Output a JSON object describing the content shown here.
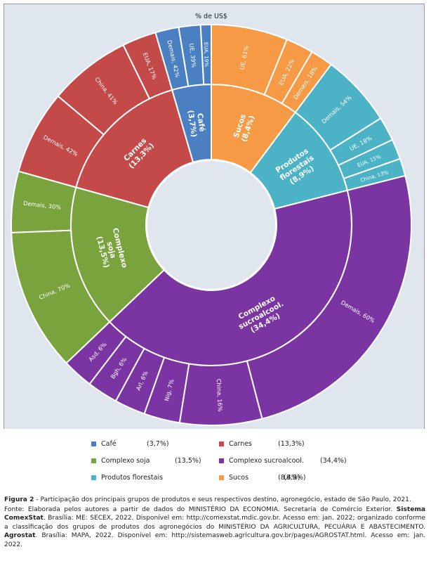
{
  "chart_data": {
    "type": "sunburst",
    "title": "% de US$",
    "legend_position": "bottom",
    "groups": [
      {
        "name": "Sucos",
        "value_label": "(8,4%)",
        "value": 8.4,
        "color": "#f79a45",
        "children": [
          {
            "label": "UE, 61%",
            "share": 61
          },
          {
            "label": "EUA, 22%",
            "share": 22
          },
          {
            "label": "Demais, 18%",
            "share": 18
          }
        ]
      },
      {
        "name": "Produtos florestais",
        "value_label": "(8,9%)",
        "value": 8.9,
        "color": "#4cb3c7",
        "children": [
          {
            "label": "Demais, 54%",
            "share": 54
          },
          {
            "label": "UE, 18%",
            "share": 18
          },
          {
            "label": "EUA, 15%",
            "share": 15
          },
          {
            "label": "China, 13%",
            "share": 13
          }
        ]
      },
      {
        "name": "Complexo sucroalcool.",
        "value_label": "(34,4%)",
        "value": 34.4,
        "color": "#7a35a3",
        "children": [
          {
            "label": "Demais, 60%",
            "share": 60
          },
          {
            "label": "China, 16%",
            "share": 16
          },
          {
            "label": "Nig, 7%",
            "share": 7
          },
          {
            "label": "Arl, 6%",
            "share": 6
          },
          {
            "label": "Bgh, 6%",
            "share": 6
          },
          {
            "label": "Asd, 6%",
            "share": 6
          }
        ]
      },
      {
        "name": "Complexo soja",
        "value_label": "(13,5%)",
        "value": 13.5,
        "color": "#79a33d",
        "children": [
          {
            "label": "China, 70%",
            "share": 70
          },
          {
            "label": "Demais, 30%",
            "share": 30
          }
        ]
      },
      {
        "name": "Carnes",
        "value_label": "(13,3%)",
        "value": 13.3,
        "color": "#c44a4a",
        "children": [
          {
            "label": "Demais, 42%",
            "share": 42
          },
          {
            "label": "China, 41%",
            "share": 41
          },
          {
            "label": "EUA, 17%",
            "share": 17
          }
        ]
      },
      {
        "name": "Café",
        "value_label": "(3,7%)",
        "value": 3.7,
        "color": "#4a80c1",
        "children": [
          {
            "label": "Demais, 42%",
            "share": 42
          },
          {
            "label": "UE, 39%",
            "share": 39
          },
          {
            "label": "EUA, 19%",
            "share": 19
          }
        ]
      }
    ],
    "legend": [
      {
        "label": "Café",
        "pct": "(3,7%)",
        "color": "#4a80c1"
      },
      {
        "label": "Carnes",
        "pct": "(13,3%)",
        "color": "#c44a4a"
      },
      {
        "label": "Complexo soja",
        "pct": "(13,5%)",
        "color": "#79a33d"
      },
      {
        "label": "Complexo sucroalcool.",
        "pct": "(34,4%)",
        "color": "#7a35a3"
      },
      {
        "label": "Produtos florestais",
        "pct": "(8,9%)",
        "color": "#4cb3c7"
      },
      {
        "label": "Sucos",
        "pct": "(8,4%)",
        "color": "#f79a45"
      }
    ]
  },
  "caption": {
    "figure_label": "Figura 2",
    "figure_text": " - Participação dos principais grupos de produtos e seus respectivos destino, agronegócio, estado de São Paulo, 2021.",
    "source_1": "Fonte: Elaborada pelos autores a partir de dados do MINISTÉRIO DA ECONOMIA. Secretaria de Comércio Exterior. ",
    "source_1_bold": "Sistema ComexStat",
    "source_2": ". Brasília: ME: SECEX, 2022. Disponível em: http://comexstat.mdic.gov.br. Acesso em: jan. 2022; organizado conforme a classificação dos grupos de produtos dos agronegócios do MINISTÉRIO DA AGRICULTURA, PECUÁRIA E ABASTECIMENTO. ",
    "source_2_bold": "Agrostat",
    "source_3": ". Brasília: MAPA, 2022. Disponível em: http://sistemasweb.agricultura.gov.br/pages/AGROSTAT.html. Acesso em: jan. 2022."
  }
}
